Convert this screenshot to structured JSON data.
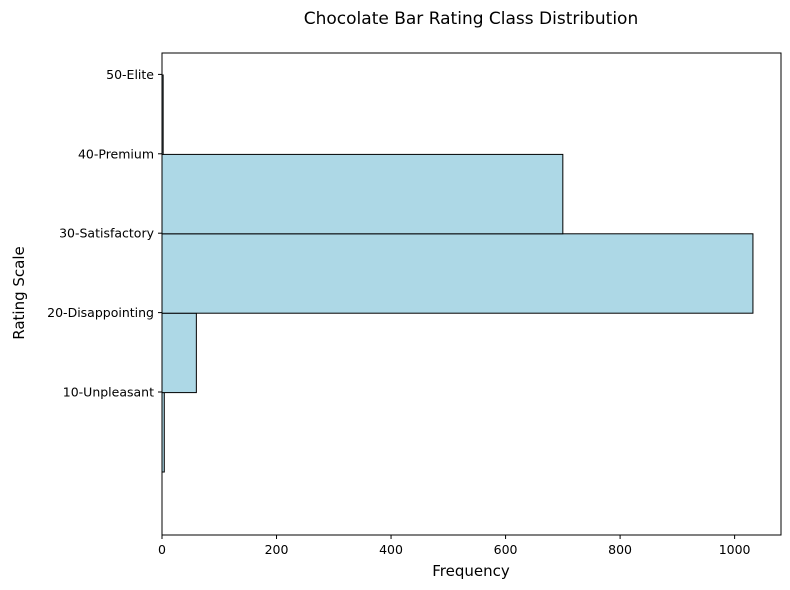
{
  "chart_data": {
    "type": "bar",
    "orientation": "horizontal",
    "title": "Chocolate Bar Rating Class Distribution",
    "xlabel": "Frequency",
    "ylabel": "Rating Scale",
    "xlim": [
      0,
      1081
    ],
    "x_ticks": [
      0,
      200,
      400,
      600,
      800,
      1000
    ],
    "y_tick_labels": [
      "10-Unpleasant",
      "20-Disappointing",
      "30-Satisfactory",
      "40-Premium",
      "50-Elite"
    ],
    "bins": [
      {
        "value": 4
      },
      {
        "value": 60
      },
      {
        "value": 1032
      },
      {
        "value": 700
      },
      {
        "value": 2
      }
    ],
    "bar_fill": "#add8e6",
    "bar_edge": "#000000",
    "grid": false,
    "legend": "none"
  }
}
